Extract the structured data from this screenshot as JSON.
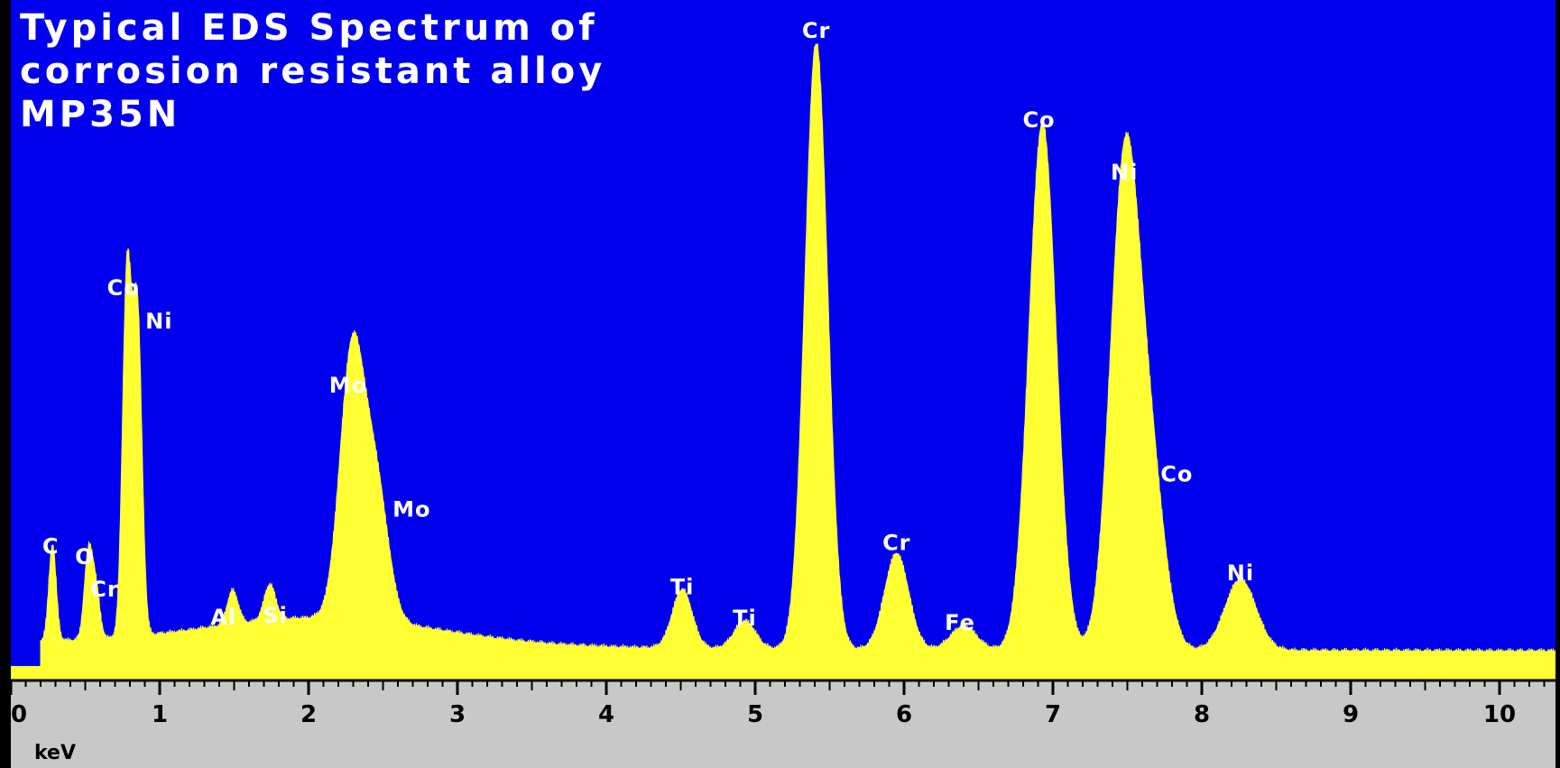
{
  "title_lines": [
    "Typical EDS Spectrum of",
    "corrosion resistant alloy",
    "MP35N"
  ],
  "colors": {
    "plot_background": "#0000ee",
    "spectrum_fill": "#ffff33",
    "axis_band": "#c8c8c8",
    "frame": "#000000",
    "label_text": "#ffffff",
    "tick_text": "#000000"
  },
  "chart_data": {
    "type": "area",
    "title": "Typical EDS Spectrum of corrosion resistant alloy MP35N",
    "xlabel": "keV",
    "ylabel": "",
    "xlim": [
      0,
      10.4
    ],
    "ylim": [
      0,
      100
    ],
    "grid": false,
    "x_ticks": [
      0,
      1,
      2,
      3,
      4,
      5,
      6,
      7,
      8,
      9,
      10
    ],
    "x_tick_labels": [
      "0",
      "1",
      "2",
      "3",
      "4",
      "5",
      "6",
      "7",
      "8",
      "9",
      "10"
    ],
    "peaks": [
      {
        "label": "C",
        "energy_keV": 0.28,
        "height": 15.5
      },
      {
        "label": "O",
        "energy_keV": 0.52,
        "height": 13.5
      },
      {
        "label": "Cr",
        "energy_keV": 0.57,
        "height": 8.0
      },
      {
        "label": "Co",
        "energy_keV": 0.78,
        "height": 58.0
      },
      {
        "label": "Ni",
        "energy_keV": 0.85,
        "height": 52.0
      },
      {
        "label": "Al",
        "energy_keV": 1.49,
        "height": 5.5
      },
      {
        "label": "Si",
        "energy_keV": 1.74,
        "height": 5.8
      },
      {
        "label": "Mo",
        "energy_keV": 2.29,
        "height": 42.0
      },
      {
        "label": "Mo",
        "energy_keV": 2.45,
        "height": 22.0
      },
      {
        "label": "Ti",
        "energy_keV": 4.51,
        "height": 9.5
      },
      {
        "label": "Ti",
        "energy_keV": 4.93,
        "height": 4.5
      },
      {
        "label": "Cr",
        "energy_keV": 5.41,
        "height": 98.0
      },
      {
        "label": "Cr",
        "energy_keV": 5.95,
        "height": 15.5
      },
      {
        "label": "Fe",
        "energy_keV": 6.4,
        "height": 3.8
      },
      {
        "label": "Co",
        "energy_keV": 6.93,
        "height": 85.0
      },
      {
        "label": "Ni",
        "energy_keV": 7.48,
        "height": 76.0
      },
      {
        "label": "Co",
        "energy_keV": 7.65,
        "height": 28.0
      },
      {
        "label": "Ni",
        "energy_keV": 8.26,
        "height": 11.5
      }
    ]
  }
}
